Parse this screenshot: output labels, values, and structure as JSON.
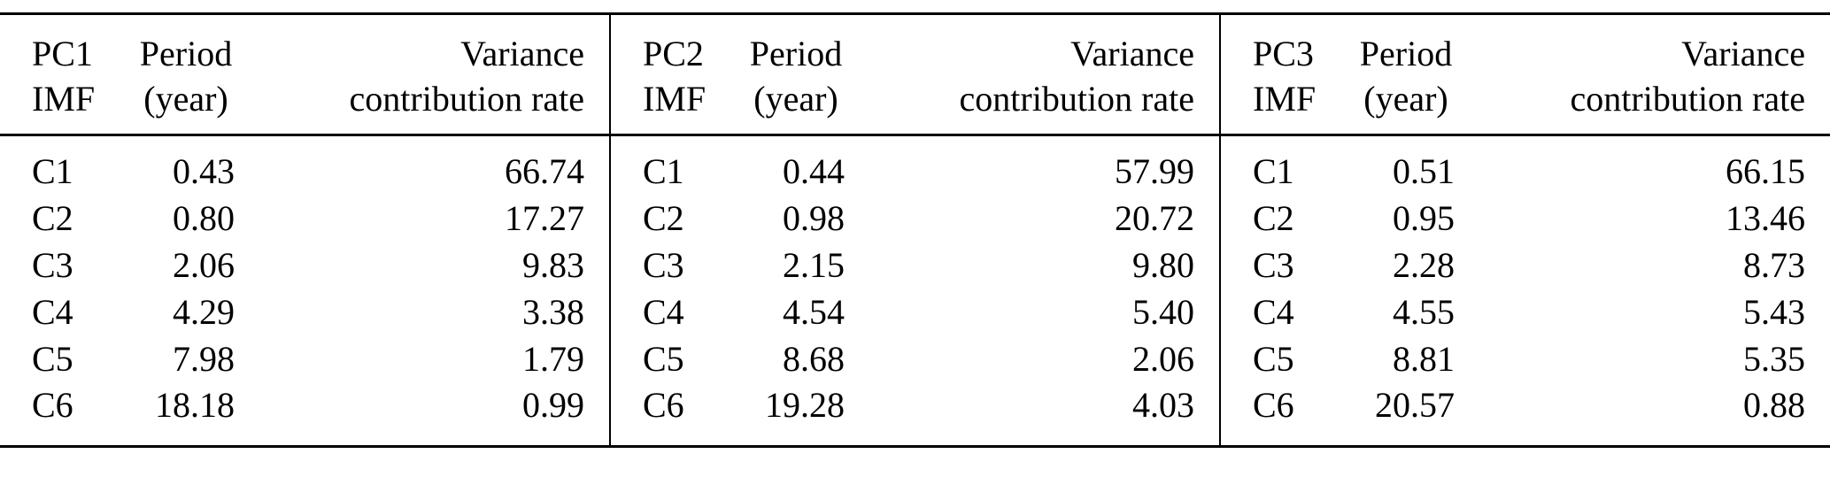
{
  "table": {
    "groups": [
      {
        "headers": {
          "imf_line1": "PC1",
          "imf_line2": "IMF",
          "period_line1": "Period",
          "period_line2": "(year)",
          "variance_line1": "Variance",
          "variance_line2": "contribution rate"
        },
        "rows": [
          {
            "imf": "C1",
            "period": "0.43",
            "variance": "66.74"
          },
          {
            "imf": "C2",
            "period": "0.80",
            "variance": "17.27"
          },
          {
            "imf": "C3",
            "period": "2.06",
            "variance": "9.83"
          },
          {
            "imf": "C4",
            "period": "4.29",
            "variance": "3.38"
          },
          {
            "imf": "C5",
            "period": "7.98",
            "variance": "1.79"
          },
          {
            "imf": "C6",
            "period": "18.18",
            "variance": "0.99"
          }
        ]
      },
      {
        "headers": {
          "imf_line1": "PC2",
          "imf_line2": "IMF",
          "period_line1": "Period",
          "period_line2": "(year)",
          "variance_line1": "Variance",
          "variance_line2": "contribution rate"
        },
        "rows": [
          {
            "imf": "C1",
            "period": "0.44",
            "variance": "57.99"
          },
          {
            "imf": "C2",
            "period": "0.98",
            "variance": "20.72"
          },
          {
            "imf": "C3",
            "period": "2.15",
            "variance": "9.80"
          },
          {
            "imf": "C4",
            "period": "4.54",
            "variance": "5.40"
          },
          {
            "imf": "C5",
            "period": "8.68",
            "variance": "2.06"
          },
          {
            "imf": "C6",
            "period": "19.28",
            "variance": "4.03"
          }
        ]
      },
      {
        "headers": {
          "imf_line1": "PC3",
          "imf_line2": "IMF",
          "period_line1": "Period",
          "period_line2": "(year)",
          "variance_line1": "Variance",
          "variance_line2": "contribution rate"
        },
        "rows": [
          {
            "imf": "C1",
            "period": "0.51",
            "variance": "66.15"
          },
          {
            "imf": "C2",
            "period": "0.95",
            "variance": "13.46"
          },
          {
            "imf": "C3",
            "period": "2.28",
            "variance": "8.73"
          },
          {
            "imf": "C4",
            "period": "4.55",
            "variance": "5.43"
          },
          {
            "imf": "C5",
            "period": "8.81",
            "variance": "5.35"
          },
          {
            "imf": "C6",
            "period": "20.57",
            "variance": "0.88"
          }
        ]
      }
    ]
  }
}
